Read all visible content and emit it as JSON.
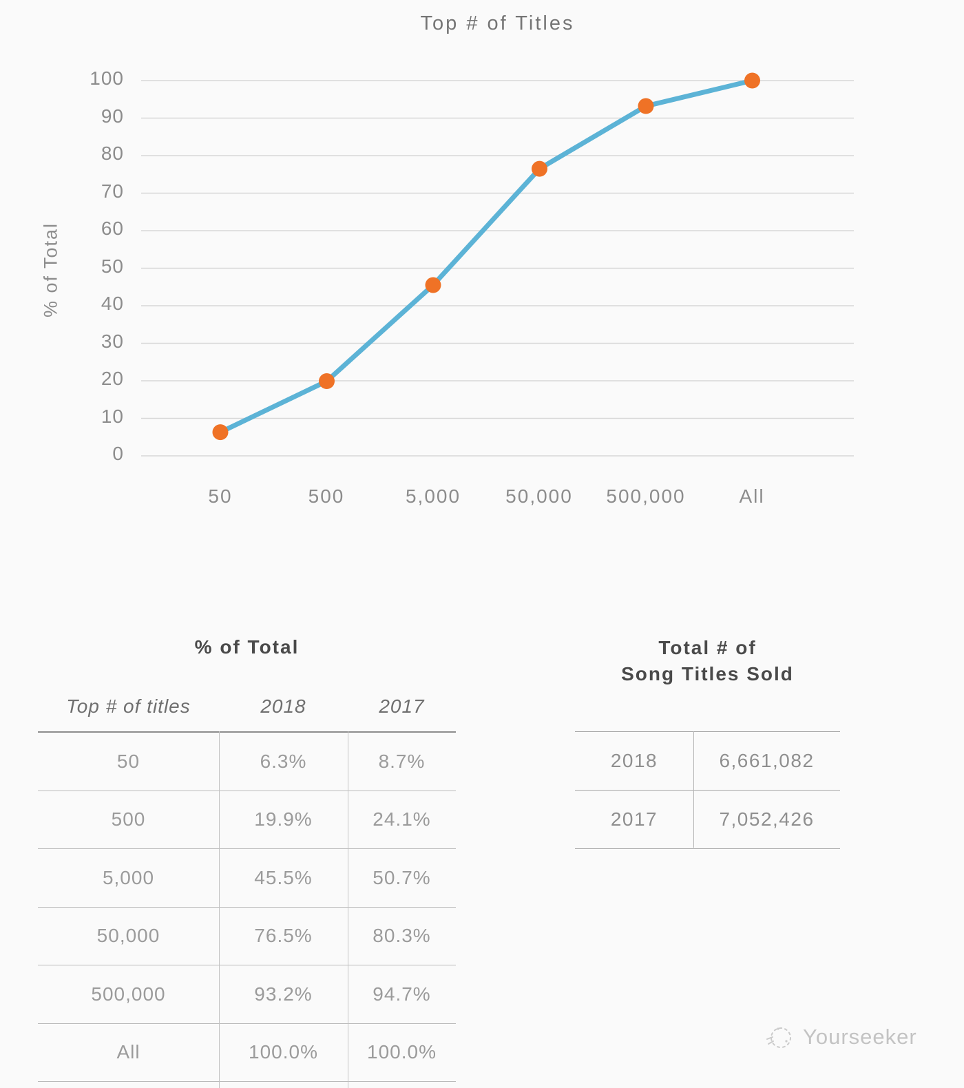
{
  "page": {
    "background": "#fafafa"
  },
  "chart_data": {
    "type": "line",
    "title": "Top # of Titles",
    "xlabel": "",
    "ylabel": "% of Total",
    "categories": [
      "50",
      "500",
      "5,000",
      "50,000",
      "500,000",
      "All"
    ],
    "series": [
      {
        "name": "2018",
        "values": [
          6.3,
          19.9,
          45.5,
          76.5,
          93.2,
          100.0
        ]
      }
    ],
    "ylim": [
      0,
      100
    ],
    "yticks": [
      0,
      10,
      20,
      30,
      40,
      50,
      60,
      70,
      80,
      90,
      100
    ],
    "grid": true,
    "legend": false,
    "colors": {
      "line": "#5cb3d6",
      "marker": "#ef7226",
      "grid": "#d7d7d7"
    }
  },
  "tables": {
    "percent_of_total": {
      "title": "% of Total",
      "columns": [
        "Top # of titles",
        "2018",
        "2017"
      ],
      "rows": [
        [
          "50",
          "6.3%",
          "8.7%"
        ],
        [
          "500",
          "19.9%",
          "24.1%"
        ],
        [
          "5,000",
          "45.5%",
          "50.7%"
        ],
        [
          "50,000",
          "76.5%",
          "80.3%"
        ],
        [
          "500,000",
          "93.2%",
          "94.7%"
        ],
        [
          "All",
          "100.0%",
          "100.0%"
        ]
      ]
    },
    "song_titles_sold": {
      "title_line1": "Total # of",
      "title_line2": "Song Titles Sold",
      "rows": [
        [
          "2018",
          "6,661,082"
        ],
        [
          "2017",
          "7,052,426"
        ]
      ]
    }
  },
  "watermark": {
    "label": "Yourseeker"
  }
}
